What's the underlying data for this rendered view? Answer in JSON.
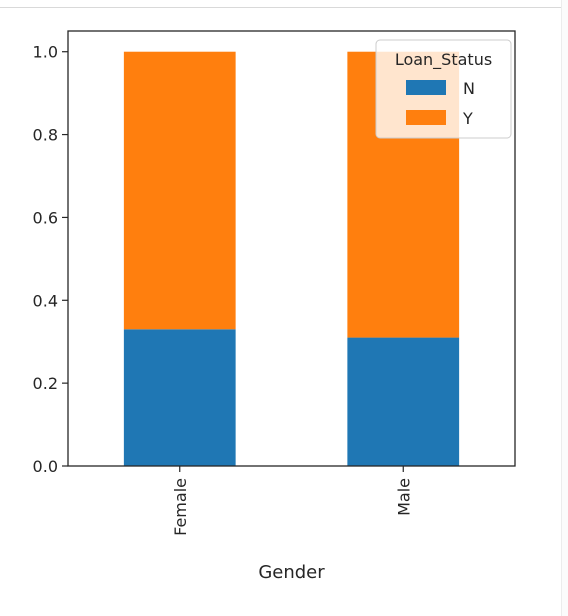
{
  "chart_data": {
    "type": "bar",
    "stacked": true,
    "categories": [
      "Female",
      "Male"
    ],
    "series": [
      {
        "name": "N",
        "values": [
          0.33,
          0.31
        ],
        "color": "#1f77b4"
      },
      {
        "name": "Y",
        "values": [
          0.67,
          0.69
        ],
        "color": "#ff7f0e"
      }
    ],
    "xlabel": "Gender",
    "ylabel": "",
    "ylim": [
      0,
      1.05
    ],
    "yticks": [
      "0.0",
      "0.2",
      "0.4",
      "0.6",
      "0.8",
      "1.0"
    ],
    "x_tick_rotation": "vertical",
    "grid": false,
    "legend": {
      "title": "Loan_Status",
      "placement": "top-right"
    }
  }
}
